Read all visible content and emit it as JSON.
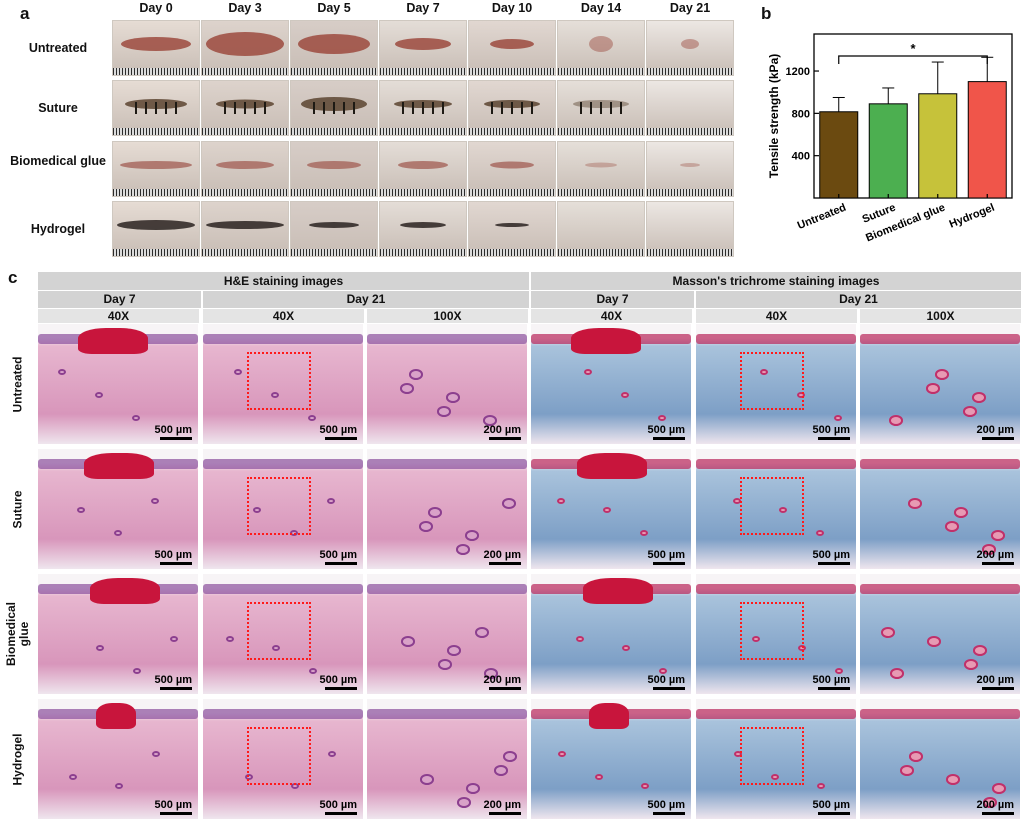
{
  "panel_letters": {
    "a": "a",
    "b": "b",
    "c": "c"
  },
  "panel_a": {
    "days": [
      "Day 0",
      "Day 3",
      "Day 5",
      "Day 7",
      "Day 10",
      "Day 14",
      "Day 21"
    ],
    "rows": [
      "Untreated",
      "Suture",
      "Biomedical glue",
      "Hydrogel"
    ]
  },
  "chart_data": {
    "type": "bar",
    "categories": [
      "Untreated",
      "Suture",
      "Biomedical glue",
      "Hydrogel"
    ],
    "values": [
      815,
      890,
      985,
      1100
    ],
    "errors": [
      135,
      150,
      300,
      230
    ],
    "colors": [
      "#6b4a10",
      "#4caf50",
      "#c6c23a",
      "#f0554a"
    ],
    "ylabel": "Tensile strength (kPa)",
    "ylim": [
      0,
      1550
    ],
    "yticks": [
      400,
      800,
      1200
    ],
    "significance": "*"
  },
  "panel_c": {
    "group_headers": [
      "H&E staining images",
      "Masson's trichrome staining images"
    ],
    "day_headers": [
      "Day 7",
      "Day 21",
      "Day 7",
      "Day 21"
    ],
    "mag_headers": [
      "40X",
      "40X",
      "100X",
      "40X",
      "40X",
      "100X"
    ],
    "rows": [
      "Untreated",
      "Suture",
      "Biomedical glue",
      "Hydrogel"
    ],
    "scale_labels": [
      "500 µm",
      "500 µm",
      "200 µm",
      "500 µm",
      "500 µm",
      "200 µm"
    ]
  },
  "colors": {
    "he_tissue": "#e7b6cf",
    "masson_tissue": "#a9c3dc",
    "zoom_box": "#ff1a1a",
    "header_bg": "#d3d3d3"
  }
}
